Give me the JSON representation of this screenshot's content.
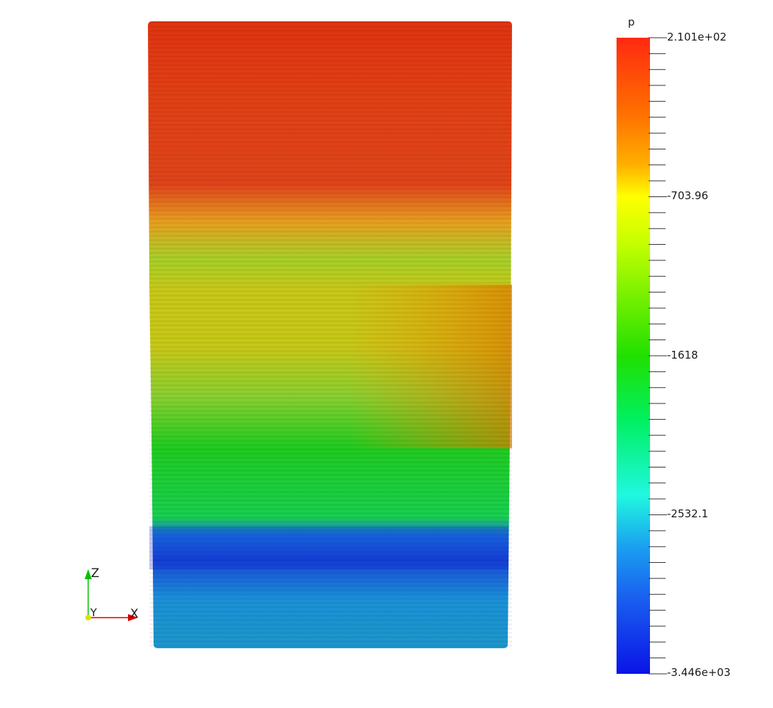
{
  "field": {
    "name": "p",
    "max_label": "2.101e+02",
    "min_label": "-3.446e+03",
    "mid_labels": [
      "-703.96",
      "-1618",
      "-2532.1"
    ]
  },
  "colormap": {
    "stops": [
      "#0a14e6",
      "#1a90e0",
      "#20f2f0",
      "#10e070",
      "#00dd10",
      "#c8ff00",
      "#ffff00",
      "#ffb000",
      "#ff7000",
      "#f23010"
    ]
  },
  "axes": {
    "z_label": "Z",
    "y_label": "Y",
    "x_label": "X",
    "colors": {
      "x": "#d80000",
      "y": "#e0e000",
      "z": "#00c000"
    }
  }
}
